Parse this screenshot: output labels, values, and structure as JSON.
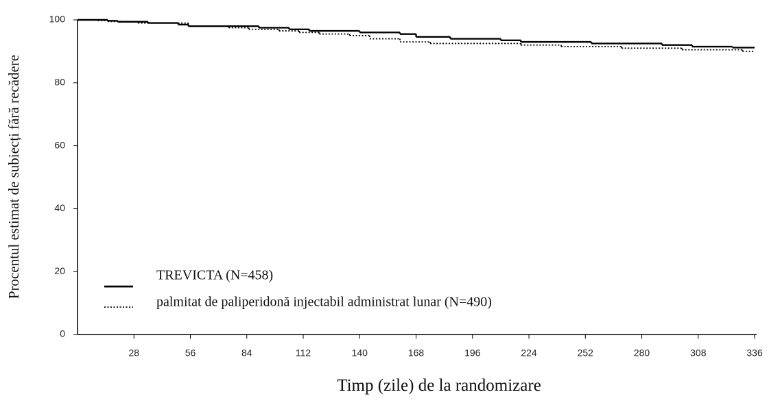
{
  "chart_data": {
    "type": "step",
    "y_label": "Procentul estimat de subiecți fără recădere",
    "x_label": "Timp (zile) de la randomizare",
    "xlim": [
      0,
      337
    ],
    "ylim": [
      0,
      100
    ],
    "xticks": [
      28,
      56,
      84,
      112,
      140,
      168,
      196,
      224,
      252,
      280,
      308,
      336
    ],
    "yticks": [
      0,
      20,
      40,
      60,
      80,
      100
    ],
    "series": [
      {
        "name": "TREVICTA (N=458)",
        "color": "#000000",
        "style": "solid",
        "x": [
          0,
          15,
          20,
          35,
          50,
          55,
          90,
          105,
          115,
          140,
          160,
          168,
          185,
          210,
          220,
          255,
          290,
          305,
          325
        ],
        "values": [
          100,
          99.7,
          99.4,
          99,
          98.5,
          98,
          97.5,
          97,
          96.5,
          96,
          95.5,
          94.6,
          94,
          93.5,
          93,
          92.5,
          92,
          91.5,
          91.2
        ]
      },
      {
        "name": "palmitat de paliperidonă injectabil administrat lunar (N=490)",
        "color": "#000000",
        "style": "dotted",
        "x": [
          0,
          10,
          15,
          30,
          55,
          75,
          85,
          100,
          110,
          120,
          135,
          145,
          160,
          175,
          220,
          240,
          270,
          300,
          330
        ],
        "values": [
          100,
          99.8,
          99.5,
          99,
          98,
          97.5,
          97,
          96.5,
          96,
          95.5,
          95,
          94,
          93,
          92.5,
          92,
          91.5,
          91,
          90.5,
          90
        ]
      }
    ]
  }
}
